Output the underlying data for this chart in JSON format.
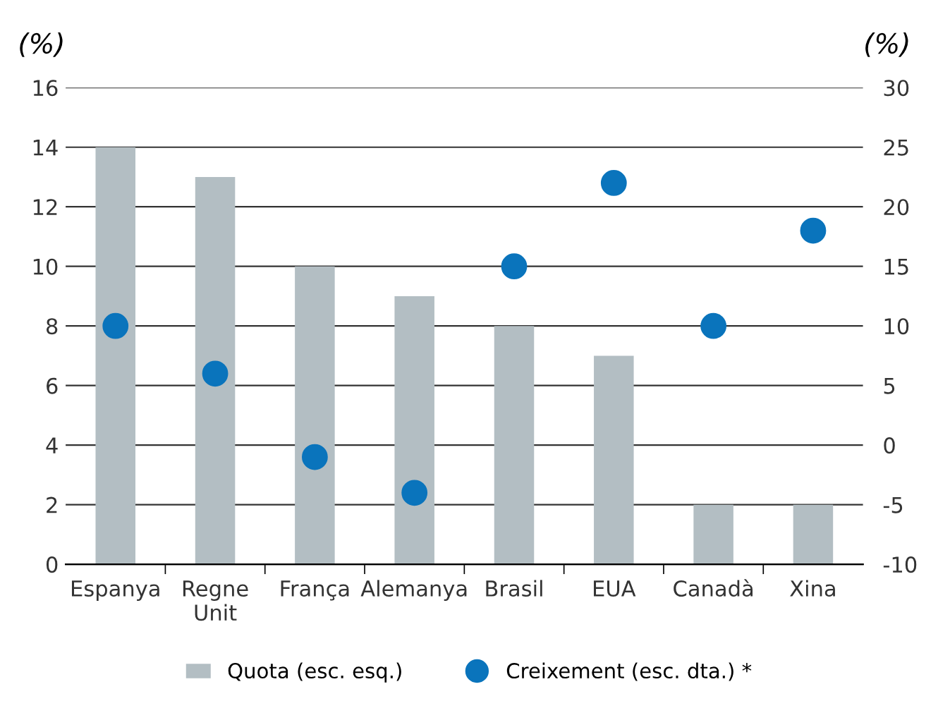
{
  "chart_data": {
    "type": "bar",
    "ylabel": "(%)",
    "y2label": "(%)",
    "categories": [
      "Espanya",
      "Regne Unit",
      "França",
      "Alemanya",
      "Brasil",
      "EUA",
      "Canadà",
      "Xina"
    ],
    "series": [
      {
        "name": "Quota (esc. esq.)",
        "color": "#b3bec3",
        "values": [
          14,
          13,
          10,
          9,
          8,
          7,
          2,
          2
        ]
      },
      {
        "name": "Creixement (esc. dta.) *",
        "type": "scatter",
        "axis": "y2",
        "color": "#0a74bc",
        "marker": "circle",
        "values": [
          10,
          6,
          -1,
          -4,
          15,
          22,
          10,
          18
        ]
      }
    ],
    "ylim": [
      0,
      16
    ],
    "yticks": [
      0,
      2,
      4,
      6,
      8,
      10,
      12,
      14,
      16
    ],
    "y2lim": [
      -10,
      30
    ],
    "y2ticks": [
      -10,
      -5,
      0,
      5,
      10,
      15,
      20,
      25,
      30
    ],
    "grid": "y",
    "legend": "bottom"
  }
}
